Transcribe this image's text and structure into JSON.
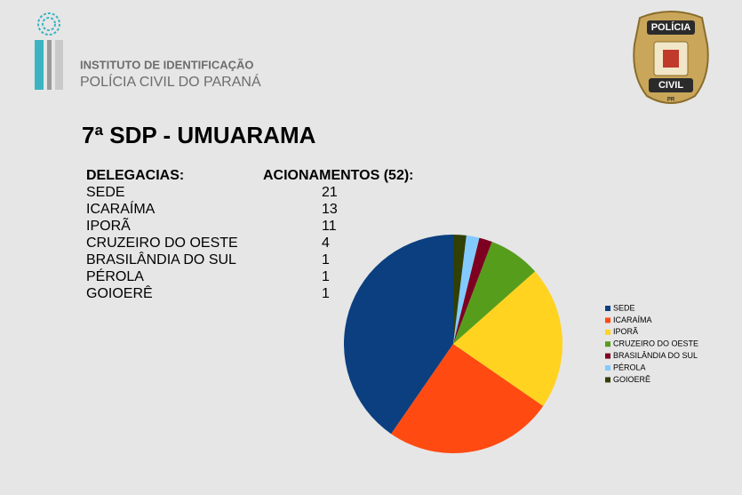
{
  "header": {
    "institute_line1": "INSTITUTO DE IDENTIFICAÇÃO",
    "institute_line2": "POLÍCIA CIVIL DO PARANÁ",
    "badge_top": "POLÍCIA",
    "badge_bottom": "CIVIL",
    "badge_state": "PR"
  },
  "title": "7ª SDP - UMUARAMA",
  "table": {
    "headers": [
      "DELEGACIAS:",
      "ACIONAMENTOS (52):"
    ]
  },
  "chart_data": {
    "type": "pie",
    "categories": [
      "SEDE",
      "ICARAÍMA",
      "IPORÃ",
      "CRUZEIRO DO OESTE",
      "BRASILÂNDIA DO SUL",
      "PÉROLA",
      "GOIOERÊ"
    ],
    "values": [
      21,
      13,
      11,
      4,
      1,
      1,
      1
    ],
    "colors": [
      "#0b3f80",
      "#ff4a12",
      "#ffd320",
      "#579d1c",
      "#7e0021",
      "#83caff",
      "#314004"
    ],
    "direction": "counterclockwise",
    "legend": "right"
  }
}
